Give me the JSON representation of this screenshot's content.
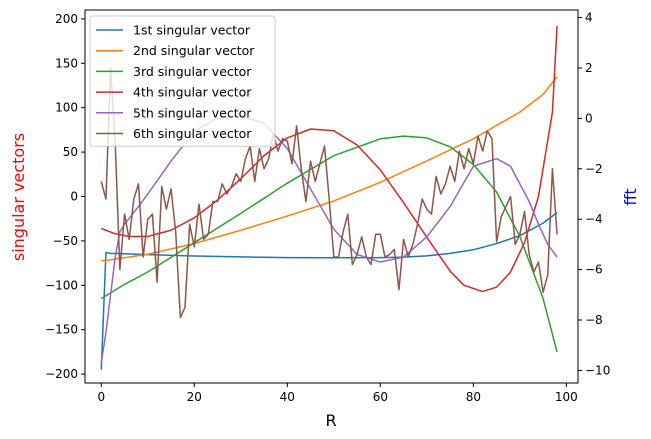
{
  "chart_data": {
    "type": "line",
    "title": "",
    "xlabel": "R",
    "ylabel_left": "singular vectors",
    "ylabel_right": "fft",
    "ylabel_left_color": "#ff0000",
    "ylabel_right_color": "#0000ff",
    "xlim": [
      -3.5,
      102.5
    ],
    "ylim_left": [
      -210,
      210
    ],
    "ylim_right": [
      -10.5,
      4.3
    ],
    "x_ticks": [
      0,
      20,
      40,
      60,
      80,
      100
    ],
    "y_ticks_left": [
      -200,
      -150,
      -100,
      -50,
      0,
      50,
      100,
      150,
      200
    ],
    "y_ticks_right": [
      -10,
      -8,
      -6,
      -4,
      -2,
      0,
      2,
      4
    ],
    "legend_position": "upper-left",
    "grid": false,
    "series": [
      {
        "name": "1st singular vector",
        "color": "#1f77b4",
        "axis": "left",
        "x": [
          0,
          1,
          2,
          5,
          10,
          20,
          30,
          40,
          50,
          60,
          65,
          70,
          75,
          80,
          85,
          90,
          95,
          98
        ],
        "y": [
          -195,
          -63,
          -64,
          -64.5,
          -65.5,
          -67,
          -68,
          -68.8,
          -69,
          -68.8,
          -68.3,
          -66.8,
          -64,
          -60,
          -53,
          -44,
          -30,
          -18
        ]
      },
      {
        "name": "2nd singular vector",
        "color": "#ff7f0e",
        "axis": "left",
        "x": [
          0,
          1,
          5,
          10,
          20,
          30,
          40,
          50,
          60,
          70,
          80,
          85,
          90,
          95,
          98
        ],
        "y": [
          -72,
          -72,
          -69,
          -65,
          -53,
          -38,
          -22,
          -5,
          16,
          40,
          65,
          80,
          95,
          115,
          135
        ]
      },
      {
        "name": "3rd singular vector",
        "color": "#2ca02c",
        "axis": "left",
        "x": [
          0,
          5,
          10,
          20,
          30,
          40,
          50,
          60,
          65,
          70,
          75,
          80,
          85,
          90,
          95,
          98
        ],
        "y": [
          -115,
          -99,
          -85,
          -52,
          -19,
          15,
          46,
          65,
          68,
          66,
          56,
          36,
          5,
          -45,
          -115,
          -175
        ]
      },
      {
        "name": "4th singular vector",
        "color": "#d62728",
        "axis": "left",
        "x": [
          0,
          3,
          6,
          10,
          15,
          20,
          25,
          30,
          35,
          40,
          45,
          50,
          55,
          60,
          65,
          70,
          75,
          78,
          82,
          85,
          88,
          91,
          94,
          97,
          98
        ],
        "y": [
          -36,
          -42,
          -45,
          -45,
          -38,
          -24,
          -4,
          20,
          46,
          66,
          76,
          74,
          58,
          30,
          -7,
          -46,
          -84,
          -100,
          -107,
          -102,
          -85,
          -52,
          0,
          95,
          192
        ]
      },
      {
        "name": "5th singular vector",
        "color": "#9467bd",
        "axis": "right",
        "x": [
          0,
          1,
          2,
          3,
          4,
          5,
          8,
          10,
          15,
          20,
          25,
          30,
          35,
          40,
          45,
          50,
          55,
          60,
          65,
          70,
          75,
          80,
          85,
          88,
          90,
          92,
          94,
          96,
          98
        ],
        "y": [
          -9.7,
          -8.5,
          -7,
          -5.5,
          -4.5,
          -4.2,
          -3.5,
          -3,
          -1.7,
          -0.5,
          0,
          0.1,
          -0.2,
          -1.2,
          -2.8,
          -4.4,
          -5.4,
          -5.7,
          -5.5,
          -4.7,
          -3.5,
          -1.9,
          -1.6,
          -1.9,
          -2.6,
          -3.3,
          -4.2,
          -5,
          -5.5
        ]
      },
      {
        "name": "6th singular vector",
        "color": "#8c564b",
        "axis": "right",
        "x": [
          0,
          1,
          2,
          3,
          4,
          5,
          6,
          7,
          8,
          9,
          10,
          11,
          12,
          13,
          14,
          15,
          16,
          17,
          18,
          19,
          20,
          21,
          22,
          23,
          24,
          25,
          26,
          27,
          28,
          29,
          30,
          31,
          32,
          33,
          34,
          35,
          36,
          37,
          38,
          39,
          40,
          41,
          42,
          43,
          44,
          45,
          46,
          47,
          48,
          49,
          50,
          51,
          52,
          53,
          54,
          55,
          56,
          57,
          58,
          59,
          60,
          61,
          62,
          63,
          64,
          65,
          66,
          67,
          68,
          69,
          70,
          71,
          72,
          73,
          74,
          75,
          76,
          77,
          78,
          79,
          80,
          81,
          82,
          83,
          84,
          85,
          86,
          87,
          88,
          89,
          90,
          91,
          92,
          93,
          94,
          95,
          96,
          97,
          98
        ],
        "y": [
          -2.5,
          -3.2,
          2,
          -1,
          -6,
          -3.8,
          -4.8,
          -3.2,
          -2.6,
          -5.5,
          -4,
          -3.8,
          -6.5,
          -2.7,
          -3.6,
          -2.8,
          -4.5,
          -7.9,
          -7.5,
          -4.2,
          -5.1,
          -3.4,
          -4.8,
          -4.6,
          -3.3,
          -3.3,
          -2.6,
          -3,
          -2.7,
          -2.2,
          -2.5,
          -1.6,
          -1.1,
          -2.5,
          -1.2,
          -2,
          -1.6,
          -0.6,
          -1.3,
          -0.8,
          -0.9,
          -1.8,
          -0.3,
          -2,
          -3.3,
          -1.7,
          -2.5,
          -1.8,
          -1.1,
          -3.2,
          -5.5,
          -5.5,
          -4.5,
          -3.8,
          -5.8,
          -5.4,
          -4.7,
          -5.5,
          -5.8,
          -4.6,
          -4.6,
          -5.5,
          -5.4,
          -5.2,
          -6.8,
          -4.8,
          -5.5,
          -5,
          -4.2,
          -3.2,
          -3.6,
          -3.8,
          -2.3,
          -3,
          -2.6,
          -1.9,
          -2.5,
          -1.3,
          -2,
          -1.2,
          -1.8,
          -0.7,
          -1.3,
          -0.5,
          -0.8,
          -4.9,
          -3.9,
          -3.5,
          -3.1,
          -5,
          -4.6,
          -3.7,
          -5.4,
          -6.1,
          -5.7,
          -6.9,
          -6.2,
          -2,
          -4.6
        ]
      }
    ]
  }
}
